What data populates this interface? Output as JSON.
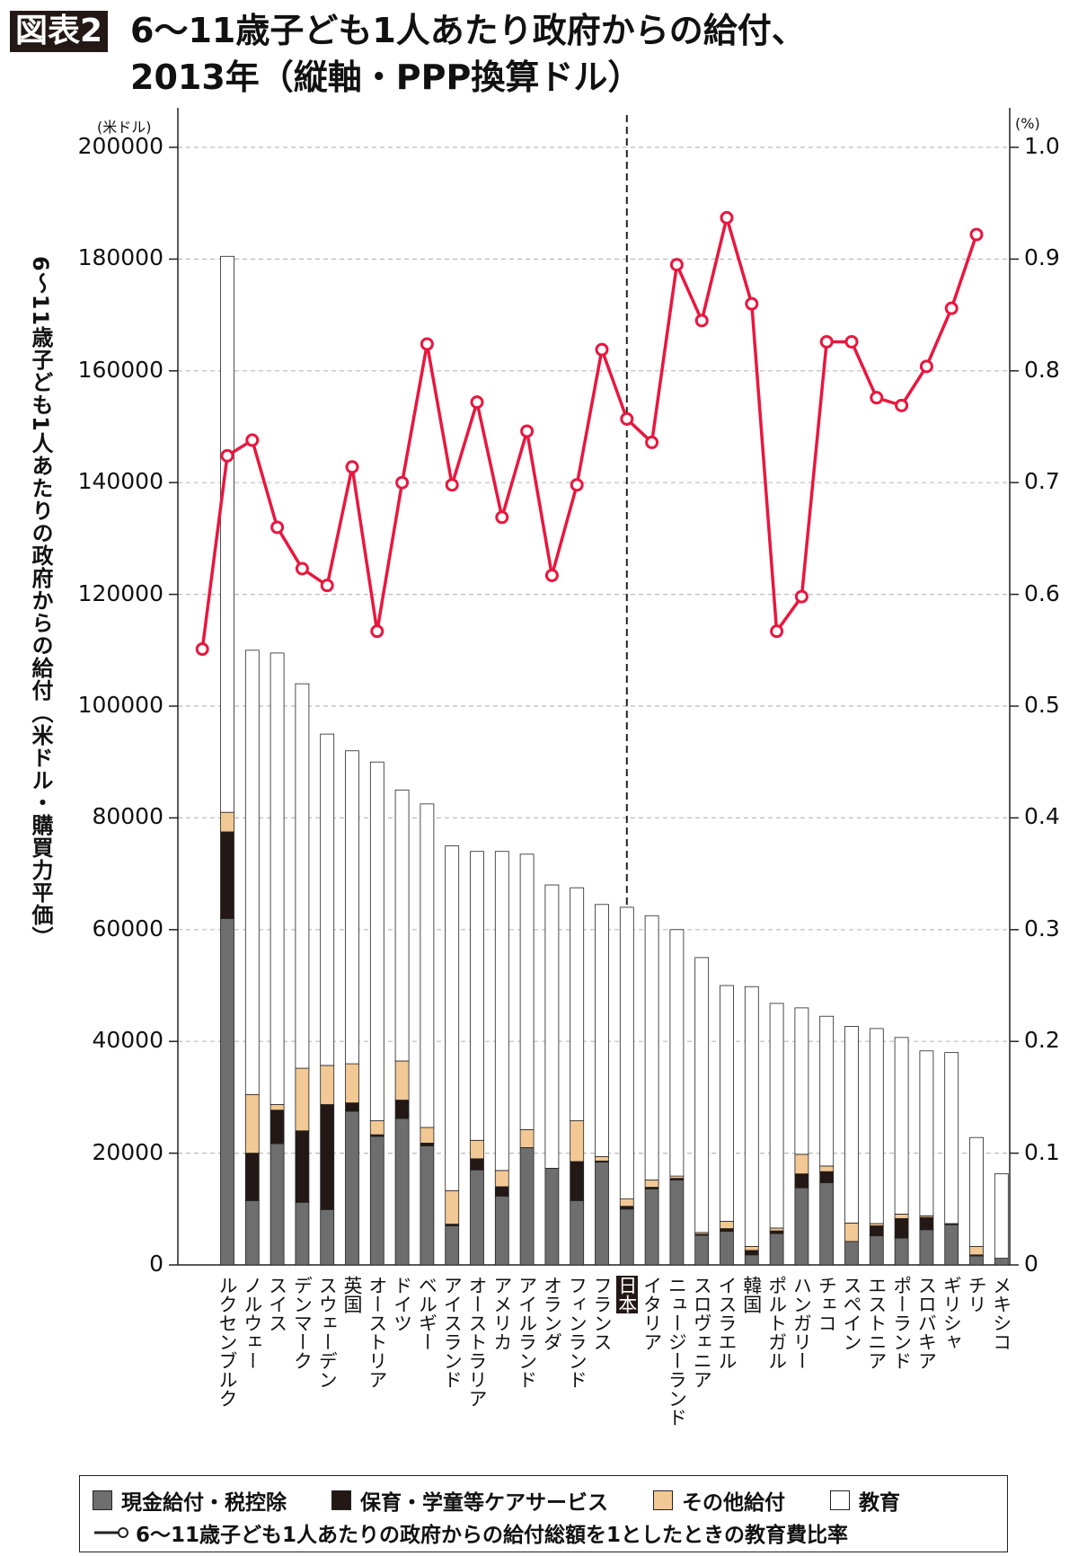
{
  "header": {
    "badge": "図表2",
    "title_line1": "6〜11歳子ども1人あたり政府からの給付、",
    "title_line2": "2013年（縦軸・PPP換算ドル）"
  },
  "chart_data": {
    "type": "bar",
    "stacked": true,
    "title": "6〜11歳子ども1人あたり政府からの給付、2013年（縦軸・PPP換算ドル）",
    "ylabel": "6〜11歳子ども1人あたりの政府からの給付（米ドル・購買力平価）",
    "y_unit": "(米ドル)",
    "y2_unit": "(%)",
    "ylim": [
      0,
      200000
    ],
    "y2lim": [
      0,
      1.0
    ],
    "yticks": [
      "0",
      "20000",
      "40000",
      "60000",
      "80000",
      "100000",
      "120000",
      "140000",
      "160000",
      "180000",
      "200000"
    ],
    "y2ticks": [
      "0",
      "0.1",
      "0.2",
      "0.3",
      "0.4",
      "0.5",
      "0.6",
      "0.7",
      "0.8",
      "0.9",
      "1.0"
    ],
    "grid": true,
    "highlight_category": "日本",
    "legend_position": "bottom",
    "categories": [
      "ルクセンブルク",
      "ノルウェー",
      "スイス",
      "デンマーク",
      "スウェーデン",
      "英国",
      "オーストリア",
      "ドイツ",
      "ベルギー",
      "アイスランド",
      "オーストラリア",
      "アメリカ",
      "アイルランド",
      "オランダ",
      "フィンランド",
      "フランス",
      "日本",
      "イタリア",
      "ニュージーランド",
      "スロヴェニア",
      "イスラエル",
      "韓国",
      "ポルトガル",
      "ハンガリー",
      "チェコ",
      "スペイン",
      "エストニア",
      "ポーランド",
      "スロバキア",
      "ギリシャ",
      "チリ",
      "メキシコ"
    ],
    "series": [
      {
        "name": "現金給付・税控除",
        "color": "#6e6e6e",
        "values": [
          62000,
          11500,
          21700,
          11200,
          9900,
          27500,
          23000,
          26200,
          21300,
          7000,
          17000,
          12300,
          21000,
          17300,
          11500,
          18400,
          10000,
          13600,
          15200,
          5300,
          6000,
          1800,
          5600,
          13800,
          14700,
          4200,
          5200,
          4800,
          6300,
          7200,
          1600,
          1200
        ]
      },
      {
        "name": "保育・学童等ケアサービス",
        "color": "#231815",
        "values": [
          15500,
          8500,
          6000,
          12800,
          18800,
          1500,
          300,
          3300,
          500,
          300,
          2000,
          1700,
          0,
          0,
          7000,
          200,
          500,
          300,
          300,
          200,
          500,
          800,
          500,
          2500,
          2000,
          0,
          1800,
          3500,
          2200,
          200,
          200,
          0
        ]
      },
      {
        "name": "その他給付",
        "color": "#f2c894",
        "values": [
          3500,
          10500,
          1000,
          11200,
          7000,
          7000,
          2500,
          7000,
          2800,
          6000,
          3300,
          2900,
          3200,
          0,
          7300,
          800,
          1300,
          1300,
          400,
          300,
          1300,
          700,
          500,
          3500,
          1000,
          3300,
          400,
          800,
          300,
          0,
          1500,
          0
        ]
      },
      {
        "name": "教育",
        "color": "#ffffff",
        "values": [
          99500,
          79500,
          80800,
          68800,
          59300,
          56000,
          64200,
          48500,
          57900,
          61700,
          51700,
          57100,
          49300,
          50700,
          41700,
          45100,
          52200,
          47300,
          44100,
          49200,
          42200,
          46500,
          40200,
          26200,
          26800,
          35200,
          34900,
          31600,
          29500,
          30600,
          19500,
          15100
        ]
      },
      {
        "name": "6〜11歳子ども1人あたりの政府からの給付総額を1としたときの教育費比率",
        "color": "#e8173f",
        "type": "line",
        "axis": "right",
        "values": [
          0.551,
          0.724,
          0.738,
          0.66,
          0.623,
          0.608,
          0.714,
          0.567,
          0.7,
          0.824,
          0.698,
          0.772,
          0.669,
          0.746,
          0.617,
          0.698,
          0.819,
          0.757,
          0.736,
          0.895,
          0.845,
          0.937,
          0.86,
          0.567,
          0.598,
          0.826,
          0.826,
          0.776,
          0.769,
          0.804,
          0.856,
          0.922
        ]
      }
    ]
  }
}
